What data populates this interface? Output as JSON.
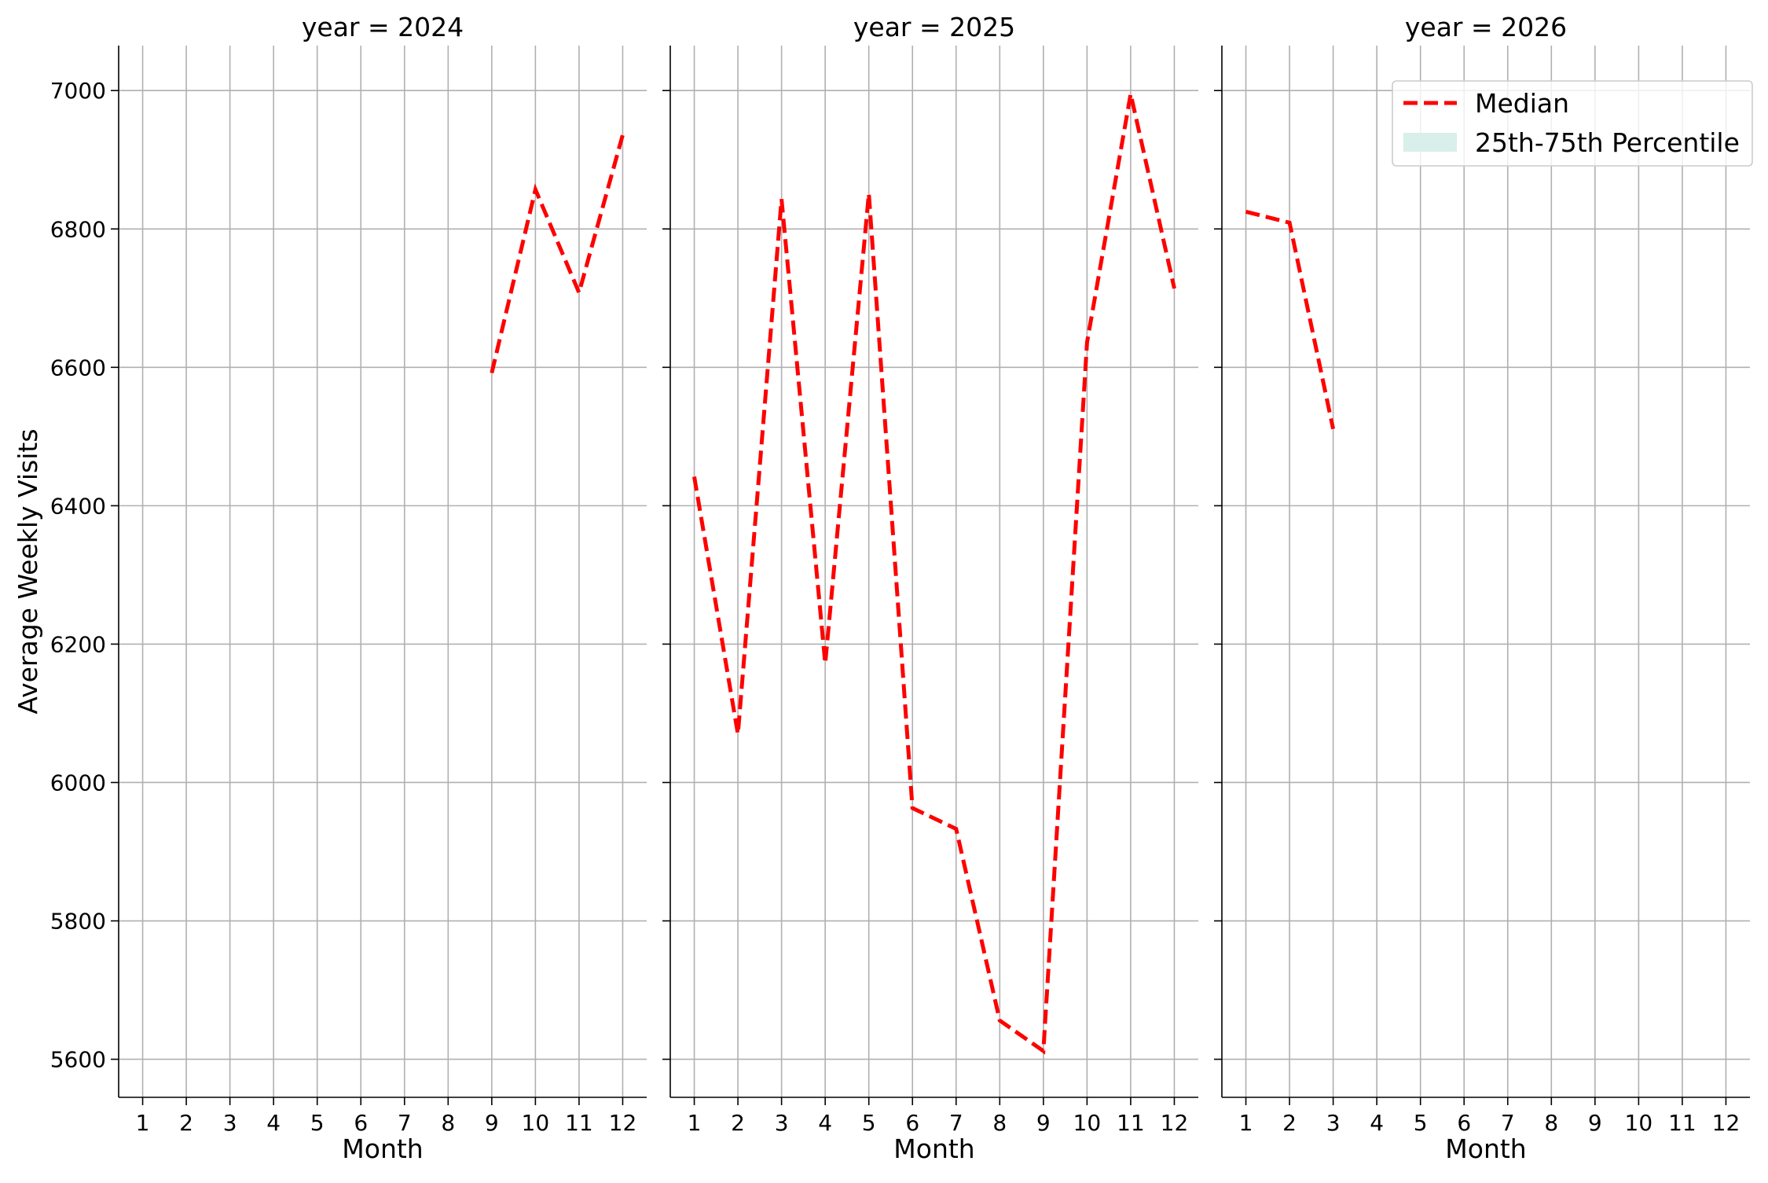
{
  "chart_data": {
    "type": "line",
    "ylabel": "Average Weekly Visits",
    "xlabel": "Month",
    "ylim": [
      5545,
      7065
    ],
    "xlim": [
      0.45,
      12.55
    ],
    "y_ticks": [
      5600,
      5800,
      6000,
      6200,
      6400,
      6600,
      6800,
      7000
    ],
    "x_ticks": [
      1,
      2,
      3,
      4,
      5,
      6,
      7,
      8,
      9,
      10,
      11,
      12
    ],
    "grid": true,
    "series_style": {
      "color": "#ff0000",
      "dash": "dashed"
    },
    "legend": {
      "placement": "top-right",
      "panel": 3,
      "entries": [
        {
          "label": "Median",
          "kind": "line",
          "color": "#ff0000"
        },
        {
          "label": "25th-75th Percentile",
          "kind": "patch",
          "color": "#d9efe9"
        }
      ]
    },
    "panels": [
      {
        "title": "year = 2024",
        "series": [
          {
            "name": "Median",
            "x": [
              9,
              10,
              11,
              12
            ],
            "y": [
              6592,
              6857,
              6708,
              6936
            ]
          }
        ]
      },
      {
        "title": "year = 2025",
        "series": [
          {
            "name": "Median",
            "x": [
              1,
              2,
              3,
              4,
              5,
              6,
              7,
              8,
              9,
              10,
              11,
              12
            ],
            "y": [
              6442,
              6070,
              6843,
              6172,
              6851,
              5963,
              5933,
              5656,
              5612,
              6636,
              6995,
              6714
            ]
          }
        ]
      },
      {
        "title": "year = 2026",
        "series": [
          {
            "name": "Median",
            "x": [
              1,
              2,
              3
            ],
            "y": [
              6825,
              6809,
              6511
            ]
          }
        ]
      }
    ]
  }
}
